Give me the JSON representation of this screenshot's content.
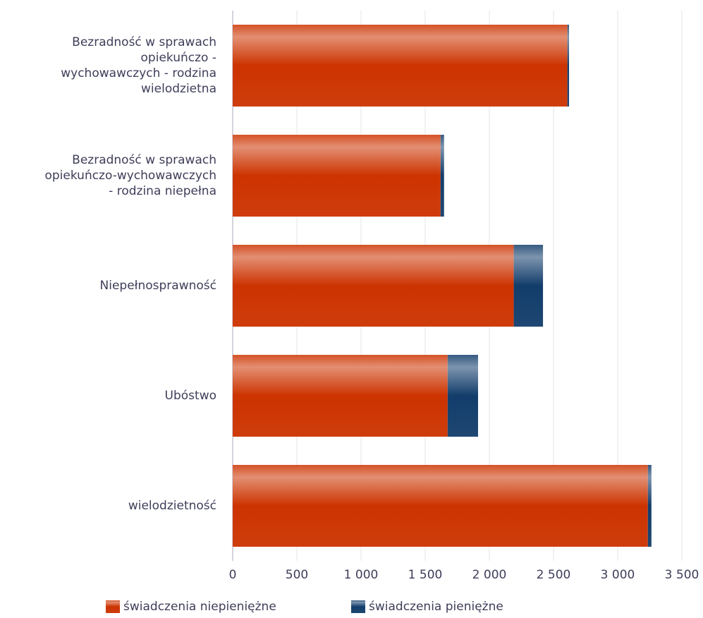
{
  "chart_data": {
    "type": "bar",
    "orientation": "horizontal",
    "stacked": true,
    "categories": [
      "Bezradność w sprawach\nopiekuńczo -\nwychowawczych - rodzina\nwielodzietna",
      "Bezradność w sprawach\nopiekuńczo-wychowawczych\n- rodzina niepełna",
      "Niepełnosprawność",
      "Ubóstwo",
      "wielodzietność"
    ],
    "series": [
      {
        "name": "świadczenia niepieniężne",
        "color": "#cc3300",
        "values": [
          2608,
          1620,
          2190,
          1675,
          3235
        ]
      },
      {
        "name": "świadczenia pieniężne",
        "color": "#123d6b",
        "values": [
          13,
          27,
          228,
          237,
          28
        ]
      }
    ],
    "xlim": [
      0,
      3500
    ],
    "xticks": [
      0,
      500,
      {
        "value": 1000,
        "label": "1 000"
      },
      {
        "value": 1500,
        "label": "1 500"
      },
      {
        "value": 2000,
        "label": "2 000"
      },
      {
        "value": 2500,
        "label": "2 500"
      },
      {
        "value": 3000,
        "label": "3 000"
      },
      {
        "value": 3500,
        "label": "3 500"
      }
    ],
    "grid": true,
    "legend": "bottom"
  }
}
